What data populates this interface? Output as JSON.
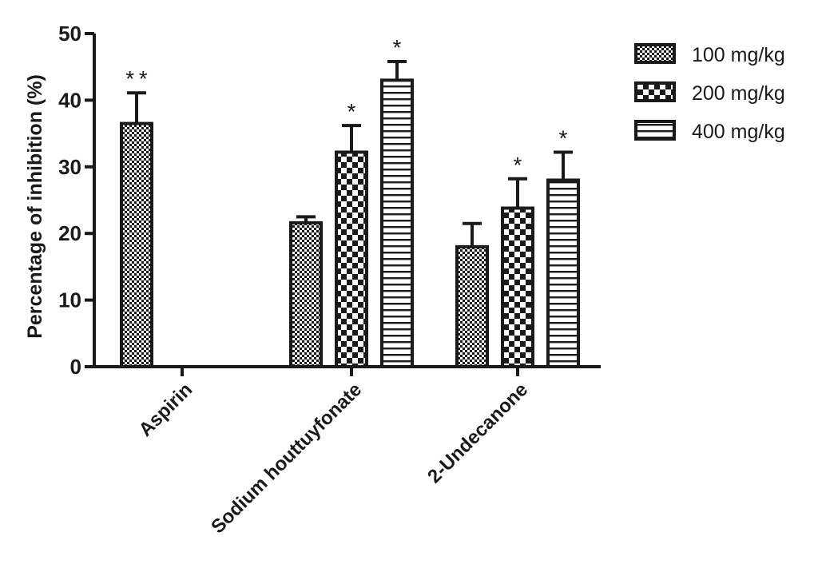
{
  "chart_data": {
    "type": "bar",
    "ylabel": "Percentage of inhibition (%)",
    "xlabel": "",
    "ylim": [
      0,
      50
    ],
    "yticks": [
      0,
      10,
      20,
      30,
      40,
      50
    ],
    "grid": false,
    "legend_position": "top-right",
    "categories": [
      "Aspirin",
      "Sodium houttuyfonate",
      "2-Undecanone"
    ],
    "series": [
      {
        "name": "100 mg/kg",
        "pattern": "fine-checker",
        "values": [
          36.5,
          21.6,
          18.0
        ],
        "errors": [
          4.6,
          0.9,
          3.5
        ],
        "annotations": [
          "**",
          "",
          ""
        ]
      },
      {
        "name": "200 mg/kg",
        "pattern": "coarse-checker",
        "values": [
          null,
          32.2,
          23.8
        ],
        "errors": [
          null,
          4.0,
          4.4
        ],
        "annotations": [
          "",
          "*",
          "*"
        ]
      },
      {
        "name": "400 mg/kg",
        "pattern": "horizontal-stripes",
        "values": [
          null,
          43.0,
          28.0
        ],
        "errors": [
          null,
          2.8,
          4.2
        ],
        "annotations": [
          "",
          "*",
          "*"
        ]
      }
    ]
  }
}
